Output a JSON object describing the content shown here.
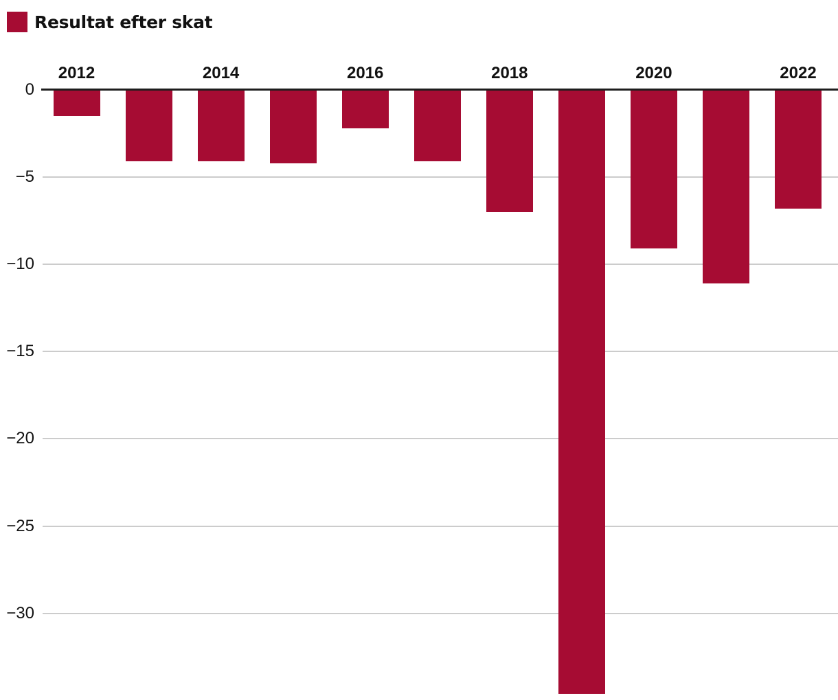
{
  "chart_data": {
    "type": "bar",
    "title": "Resultat efter skat",
    "legend": {
      "label": "Resultat efter skat",
      "position": "top-left"
    },
    "categories": [
      "2012",
      "2013",
      "2014",
      "2015",
      "2016",
      "2017",
      "2018",
      "2019",
      "2020",
      "2021",
      "2022"
    ],
    "values": [
      -1.5,
      -4.1,
      -4.1,
      -4.2,
      -2.2,
      -4.1,
      -7.0,
      -34.6,
      -9.1,
      -11.1,
      -6.8
    ],
    "xlabel": "",
    "ylabel": "",
    "ylim": [
      -35,
      0
    ],
    "yticks": [
      0,
      -5,
      -10,
      -15,
      -20,
      -25,
      -30
    ],
    "ytick_labels": [
      "0",
      "−5",
      "−10",
      "−15",
      "−20",
      "−25",
      "−30"
    ],
    "xtick_labels": [
      "2012",
      "2014",
      "2016",
      "2018",
      "2020",
      "2022"
    ],
    "xticks_shown_for_years": [
      2012,
      2014,
      2016,
      2018,
      2020,
      2022
    ],
    "grid": "horizontal",
    "colors": {
      "bar": "#a60c33",
      "zero_axis": "#1d1d1d",
      "gridline": "#cccccc",
      "text": "#111111"
    }
  }
}
